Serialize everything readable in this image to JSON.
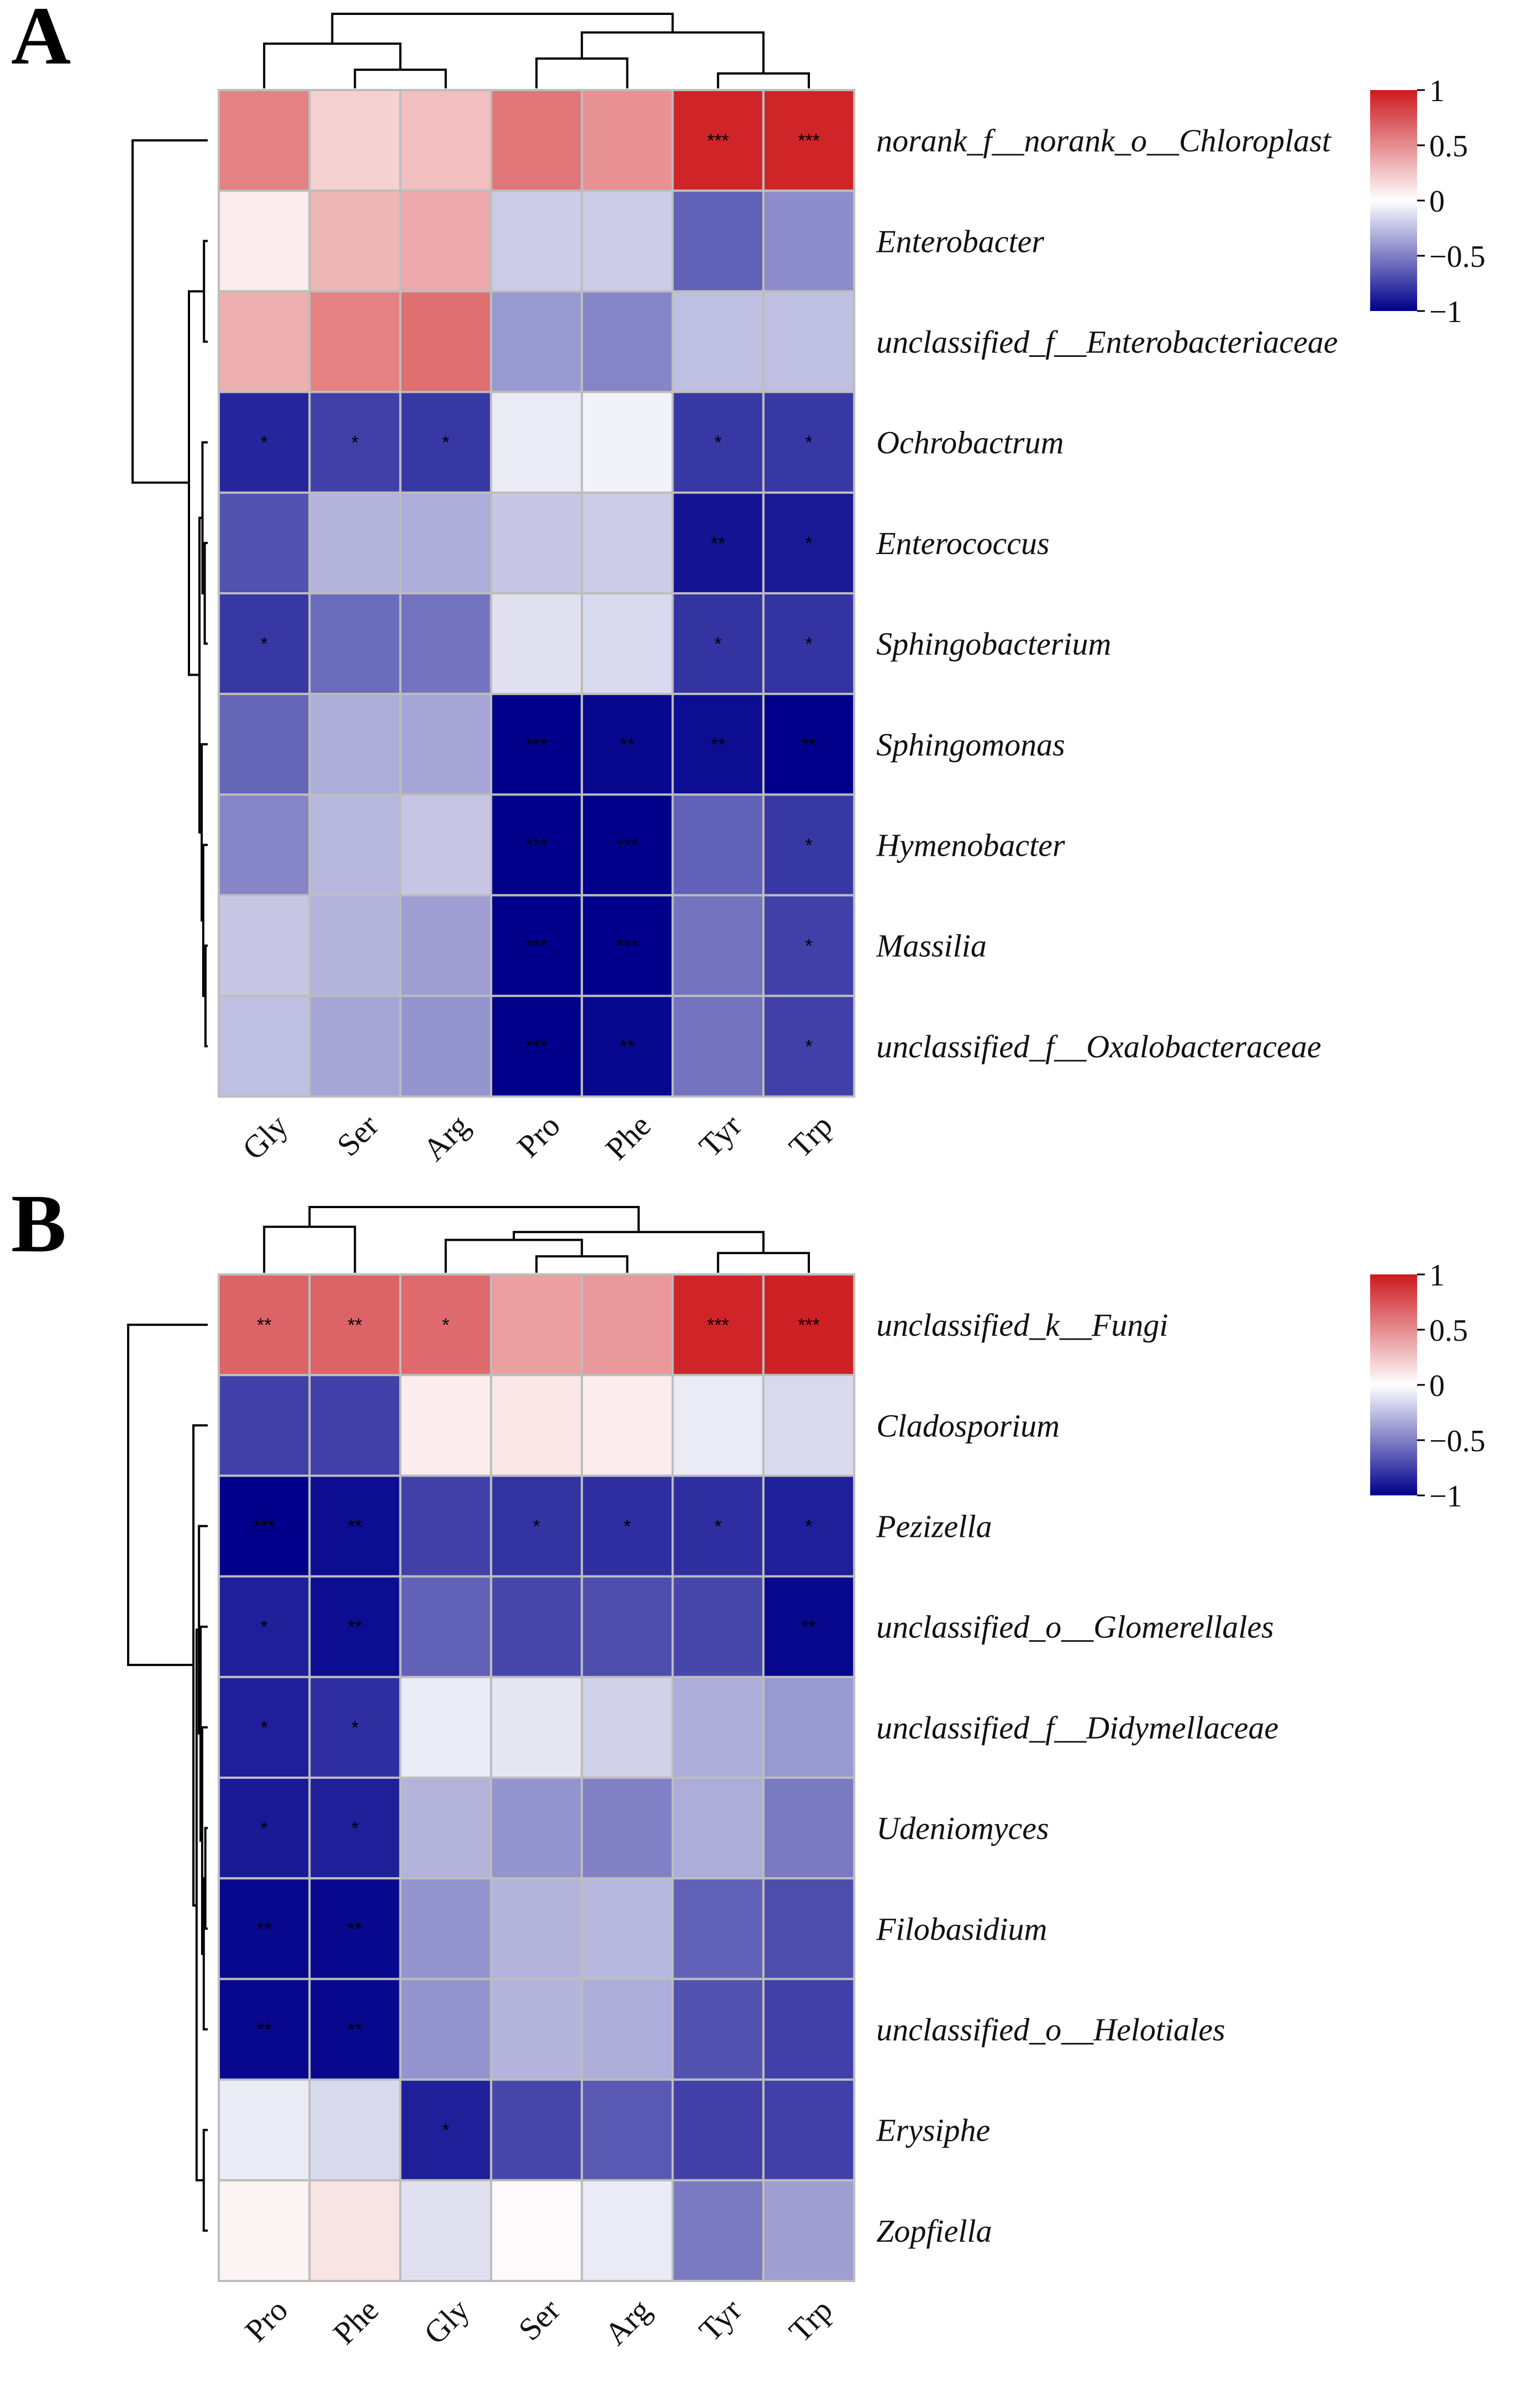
{
  "chart_data": [
    {
      "type": "heatmap",
      "panel_label": "A",
      "columns": [
        "Gly",
        "Ser",
        "Arg",
        "Pro",
        "Phe",
        "Tyr",
        "Trp"
      ],
      "rows": [
        "norank_f__norank_o__Chloroplast",
        "Enterobacter",
        "unclassified_f__Enterobacteriaceae",
        "Ochrobactrum",
        "Enterococcus",
        "Sphingobacterium",
        "Sphingomonas",
        "Hymenobacter",
        "Massilia",
        "unclassified_f__Oxalobacteraceae"
      ],
      "values": [
        [
          0.55,
          0.2,
          0.28,
          0.6,
          0.48,
          0.95,
          0.95
        ],
        [
          0.08,
          0.32,
          0.38,
          -0.2,
          -0.2,
          -0.62,
          -0.45
        ],
        [
          0.35,
          0.55,
          0.63,
          -0.4,
          -0.48,
          -0.25,
          -0.25
        ],
        [
          -0.85,
          -0.75,
          -0.78,
          -0.08,
          -0.05,
          -0.78,
          -0.78
        ],
        [
          -0.68,
          -0.3,
          -0.32,
          -0.22,
          -0.2,
          -0.92,
          -0.9
        ],
        [
          -0.78,
          -0.58,
          -0.55,
          -0.12,
          -0.15,
          -0.8,
          -0.8
        ],
        [
          -0.6,
          -0.32,
          -0.35,
          -1.0,
          -0.97,
          -0.95,
          -1.0
        ],
        [
          -0.48,
          -0.28,
          -0.22,
          -1.0,
          -1.0,
          -0.62,
          -0.78
        ],
        [
          -0.22,
          -0.3,
          -0.38,
          -1.0,
          -1.0,
          -0.55,
          -0.75
        ],
        [
          -0.25,
          -0.35,
          -0.42,
          -1.0,
          -0.97,
          -0.55,
          -0.75
        ]
      ],
      "significance": [
        [
          "",
          "",
          "",
          "",
          "",
          "***",
          "***"
        ],
        [
          "",
          "",
          "",
          "",
          "",
          "",
          ""
        ],
        [
          "",
          "",
          "",
          "",
          "",
          "",
          ""
        ],
        [
          "*",
          "*",
          "*",
          "",
          "",
          "*",
          "*"
        ],
        [
          "",
          "",
          "",
          "",
          "",
          "**",
          "*"
        ],
        [
          "*",
          "",
          "",
          "",
          "",
          "*",
          "*"
        ],
        [
          "",
          "",
          "",
          "***",
          "**",
          "**",
          "**"
        ],
        [
          "",
          "",
          "",
          "***",
          "***",
          "",
          "*"
        ],
        [
          "",
          "",
          "",
          "***",
          "***",
          "",
          "*"
        ],
        [
          "",
          "",
          "",
          "***",
          "**",
          "",
          "*"
        ]
      ],
      "legend_ticks": [
        "1",
        "0.5",
        "0",
        "−0.5",
        "−1"
      ],
      "colors": {
        "high": "#cc1a1e",
        "mid": "#ffffff",
        "low": "#00008b"
      }
    },
    {
      "type": "heatmap",
      "panel_label": "B",
      "columns": [
        "Pro",
        "Phe",
        "Gly",
        "Ser",
        "Arg",
        "Tyr",
        "Trp"
      ],
      "rows": [
        "unclassified_k__Fungi",
        "Cladosporium",
        "Pezizella",
        "unclassified_o__Glomerellales",
        "unclassified_f__Didymellaceae",
        "Udeniomyces",
        "Filobasidium",
        "unclassified_o__Helotiales",
        "Erysiphe",
        "Zopfiella"
      ],
      "values": [
        [
          0.68,
          0.68,
          0.65,
          0.42,
          0.45,
          0.95,
          0.97
        ],
        [
          -0.75,
          -0.75,
          0.08,
          0.1,
          0.08,
          -0.08,
          -0.15
        ],
        [
          -1.0,
          -0.95,
          -0.75,
          -0.8,
          -0.82,
          -0.82,
          -0.88
        ],
        [
          -0.88,
          -0.95,
          -0.62,
          -0.72,
          -0.7,
          -0.72,
          -0.97
        ],
        [
          -0.88,
          -0.82,
          -0.08,
          -0.1,
          -0.18,
          -0.32,
          -0.4
        ],
        [
          -0.9,
          -0.88,
          -0.3,
          -0.42,
          -0.5,
          -0.32,
          -0.52
        ],
        [
          -0.97,
          -0.97,
          -0.42,
          -0.3,
          -0.28,
          -0.62,
          -0.7
        ],
        [
          -0.97,
          -0.97,
          -0.42,
          -0.3,
          -0.32,
          -0.68,
          -0.75
        ],
        [
          -0.08,
          -0.15,
          -0.88,
          -0.72,
          -0.65,
          -0.75,
          -0.75
        ],
        [
          0.05,
          0.12,
          -0.12,
          0.02,
          -0.08,
          -0.52,
          -0.38
        ]
      ],
      "significance": [
        [
          "**",
          "**",
          "*",
          "",
          "",
          "***",
          "***"
        ],
        [
          "",
          "",
          "",
          "",
          "",
          "",
          ""
        ],
        [
          "***",
          "**",
          "",
          "*",
          "*",
          "*",
          "*"
        ],
        [
          "*",
          "**",
          "",
          "",
          "",
          "",
          "**"
        ],
        [
          "*",
          "*",
          "",
          "",
          "",
          "",
          ""
        ],
        [
          "*",
          "*",
          "",
          "",
          "",
          "",
          ""
        ],
        [
          "**",
          "**",
          "",
          "",
          "",
          "",
          ""
        ],
        [
          "**",
          "**",
          "",
          "",
          "",
          "",
          ""
        ],
        [
          "",
          "",
          "*",
          "",
          "",
          "",
          ""
        ],
        [
          "",
          "",
          "",
          "",
          "",
          "",
          ""
        ]
      ],
      "legend_ticks": [
        "1",
        "0.5",
        "0",
        "−0.5",
        "−1"
      ],
      "colors": {
        "high": "#cc1a1e",
        "mid": "#ffffff",
        "low": "#00008b"
      }
    }
  ]
}
